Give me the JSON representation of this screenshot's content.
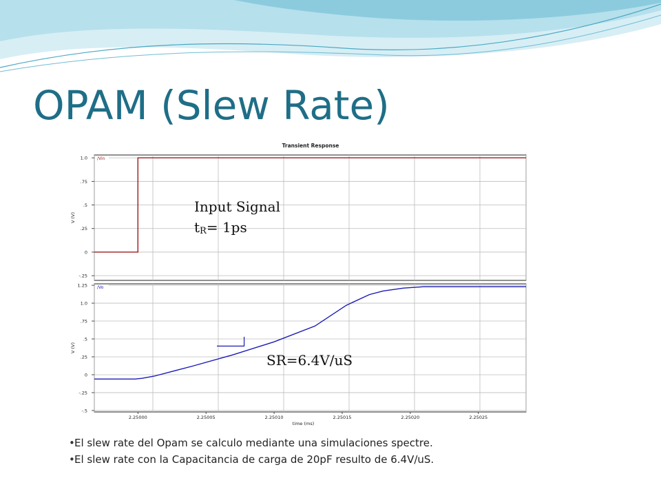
{
  "slide": {
    "title": "OPAM (Slew Rate)",
    "bullets": [
      "El slew rate del Opam se calculo mediante una simulaciones spectre.",
      "El slew rate con la Capacitancia de carga de 20pF resulto de 6.4V/uS."
    ]
  },
  "colors": {
    "title": "#1f6e87",
    "input_trace": "#9b1c1c",
    "output_trace": "#1a1ab5",
    "banner_light": "#d7eef5",
    "banner_mid": "#9fd4e4",
    "banner_dark": "#5fb4cc"
  },
  "annotations": {
    "input_signal_line1": "Input Signal",
    "input_signal_line2_t": "t",
    "input_signal_line2_sub": "R",
    "input_signal_line2_rest": "= 1ps",
    "slew_rate": "SR=6.4V/uS"
  },
  "chart_data": [
    {
      "type": "line",
      "title": "Transient Response",
      "ylabel": "V (V)",
      "xlim": [
        2.249968,
        2.250285
      ],
      "ylim": [
        -0.3,
        1.03
      ],
      "yticks": [
        1.0,
        0.75,
        0.5,
        0.25,
        0,
        -0.25
      ],
      "ytick_labels": [
        "1.0",
        ".75",
        ".5",
        ".25",
        "0",
        "-.25"
      ],
      "grid": true,
      "legend": "top-left",
      "series": [
        {
          "name": "/Vin",
          "color": "#9b1c1c",
          "x": [
            2.249968,
            2.25,
            2.25,
            2.250285
          ],
          "y": [
            0,
            0,
            1.0,
            1.0
          ]
        }
      ]
    },
    {
      "type": "line",
      "title": "",
      "xlabel": "time (ms)",
      "ylabel": "V (V)",
      "xlim": [
        2.249968,
        2.250285
      ],
      "ylim": [
        -0.52,
        1.27
      ],
      "yticks": [
        1.25,
        1.0,
        0.75,
        0.5,
        0.25,
        0,
        -0.25,
        -0.5
      ],
      "ytick_labels": [
        "1.25",
        "1.0",
        ".75",
        ".5",
        ".25",
        "0",
        "-.25",
        "-.5"
      ],
      "xticks": [
        2.25,
        2.25005,
        2.2501,
        2.25015,
        2.2502,
        2.25025
      ],
      "xtick_labels": [
        "2.25000",
        "2.25005",
        "2.25010",
        "2.25015",
        "2.25020",
        "2.25025"
      ],
      "grid": true,
      "legend": "top-left",
      "series": [
        {
          "name": "/Vo",
          "color": "#1a1ab5",
          "x": [
            2.249968,
            2.249998,
            2.250003,
            2.250012,
            2.25004,
            2.25007,
            2.2501,
            2.25013,
            2.250153,
            2.25017,
            2.25018,
            2.250195,
            2.25021,
            2.250285
          ],
          "y": [
            -0.06,
            -0.06,
            -0.05,
            -0.02,
            0.12,
            0.28,
            0.46,
            0.68,
            0.97,
            1.12,
            1.17,
            1.21,
            1.23,
            1.23
          ]
        }
      ]
    }
  ]
}
